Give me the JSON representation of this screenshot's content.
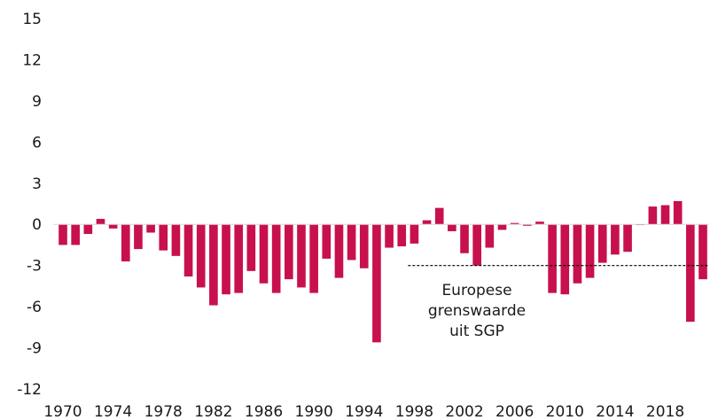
{
  "chart_data": {
    "type": "bar",
    "title": "",
    "xlabel": "",
    "ylabel": "",
    "ylim": [
      -12,
      15
    ],
    "yticks": [
      15,
      12,
      9,
      6,
      3,
      0,
      -3,
      -6,
      -9,
      -12
    ],
    "x_tick_labels": [
      "1970",
      "1974",
      "1978",
      "1982",
      "1986",
      "1990",
      "1994",
      "1998",
      "2002",
      "2006",
      "2010",
      "2014",
      "2018"
    ],
    "categories": [
      1970,
      1971,
      1972,
      1973,
      1974,
      1975,
      1976,
      1977,
      1978,
      1979,
      1980,
      1981,
      1982,
      1983,
      1984,
      1985,
      1986,
      1987,
      1988,
      1989,
      1990,
      1991,
      1992,
      1993,
      1994,
      1995,
      1996,
      1997,
      1998,
      1999,
      2000,
      2001,
      2002,
      2003,
      2004,
      2005,
      2006,
      2007,
      2008,
      2009,
      2010,
      2011,
      2012,
      2013,
      2014,
      2015,
      2016,
      2017,
      2018,
      2019,
      2020,
      2021
    ],
    "values": [
      -1.5,
      -1.5,
      -0.7,
      0.4,
      -0.3,
      -2.7,
      -1.8,
      -0.6,
      -1.9,
      -2.3,
      -3.8,
      -4.6,
      -5.9,
      -5.1,
      -5.0,
      -3.4,
      -4.3,
      -5.0,
      -4.0,
      -4.6,
      -5.0,
      -2.5,
      -3.9,
      -2.6,
      -3.2,
      -8.6,
      -1.7,
      -1.6,
      -1.4,
      0.3,
      1.2,
      -0.5,
      -2.1,
      -3.0,
      -1.7,
      -0.4,
      0.1,
      -0.1,
      0.2,
      -5.0,
      -5.1,
      -4.3,
      -3.9,
      -2.8,
      -2.2,
      -2.0,
      0.0,
      1.3,
      1.4,
      1.7,
      -7.1,
      -4.0
    ],
    "bar_color": "#c8104d",
    "grid": false,
    "reference_line": {
      "value": -3,
      "from": 1997.5,
      "to": 2021.5,
      "style": "dashed",
      "label_lines": [
        "Europese",
        "grenswaarde",
        "uit SGP"
      ]
    }
  }
}
